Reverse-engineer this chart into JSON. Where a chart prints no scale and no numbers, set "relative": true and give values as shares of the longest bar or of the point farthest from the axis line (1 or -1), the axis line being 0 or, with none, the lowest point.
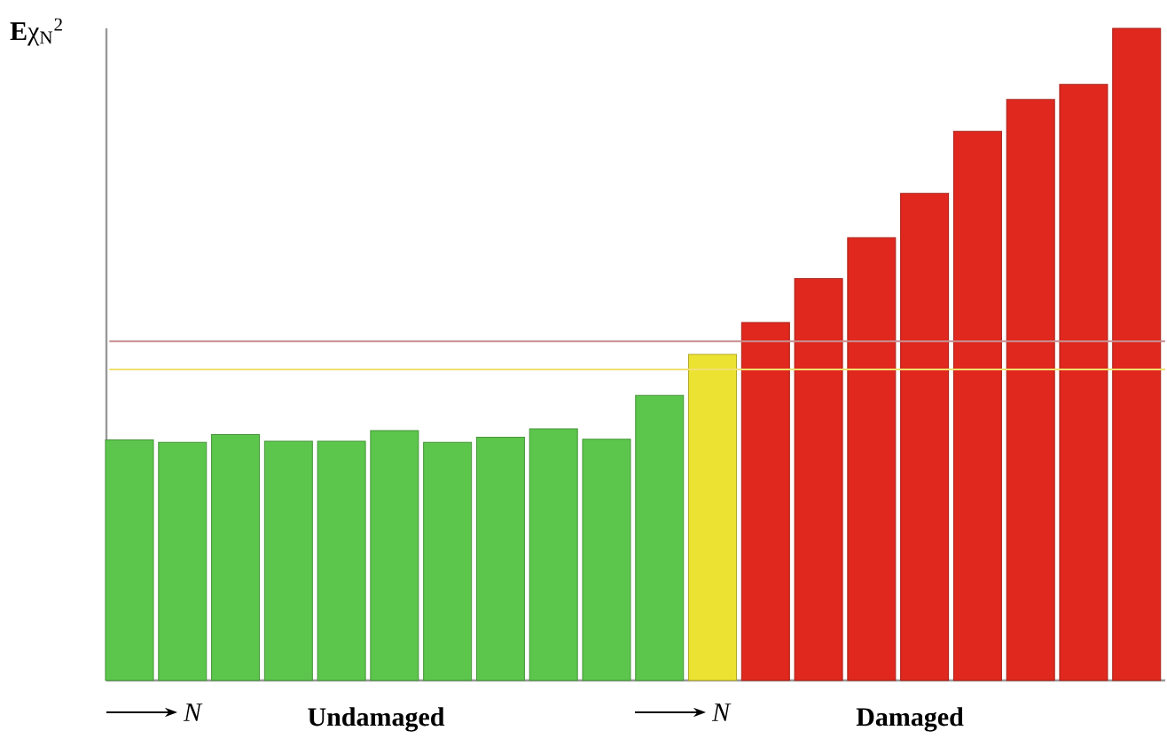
{
  "chart_data": {
    "type": "bar",
    "relative": true,
    "ylabel": "**E**χ$_{N}$$^{2}$",
    "categories": [
      null,
      null,
      null,
      null,
      null,
      null,
      null,
      null,
      null,
      null,
      null,
      null,
      null,
      null,
      null,
      null,
      null,
      null,
      null,
      null
    ],
    "values": [
      0.369,
      0.365,
      0.377,
      0.367,
      0.367,
      0.383,
      0.365,
      0.373,
      0.386,
      0.37,
      0.437,
      0.5,
      0.549,
      0.616,
      0.679,
      0.747,
      0.842,
      0.891,
      0.914,
      1
    ],
    "colors": [
      "#5cc64c",
      "#5cc64c",
      "#5cc64c",
      "#5cc64c",
      "#5cc64c",
      "#5cc64c",
      "#5cc64c",
      "#5cc64c",
      "#5cc64c",
      "#5cc64c",
      "#5cc64c",
      "#ece232",
      "#e0281e",
      "#e0281e",
      "#e0281e",
      "#e0281e",
      "#e0281e",
      "#e0281e",
      "#e0281e",
      "#e0281e"
    ],
    "ref_lines": [
      {
        "axis": "y",
        "value": 0.52,
        "color": "#c89090"
      },
      {
        "axis": "y",
        "value": 0.477,
        "color": "#f0e070"
      }
    ],
    "annotations": [
      "N",
      "Undamaged",
      "N",
      "Damaged"
    ]
  }
}
